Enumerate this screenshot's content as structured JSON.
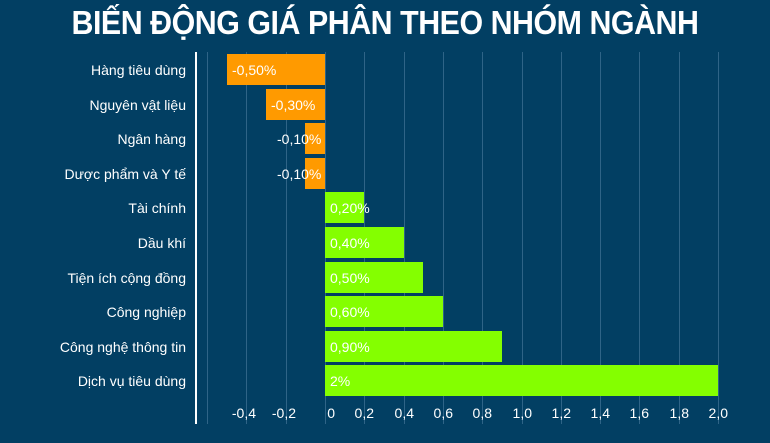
{
  "title": "BIẾN ĐỘNG GIÁ PHÂN THEO NHÓM NGÀNH",
  "chart_data": {
    "type": "bar",
    "orientation": "horizontal",
    "title": "BIẾN ĐỘNG GIÁ PHÂN THEO NHÓM NGÀNH",
    "xlabel": "",
    "ylabel": "",
    "xlim": [
      -0.5,
      2.0
    ],
    "grid": true,
    "legend": null,
    "categories": [
      "Hàng tiêu dùng",
      "Nguyên vật liệu",
      "Ngân hàng",
      "Dược phẩm và Y tế",
      "Tài chính",
      "Dầu khí",
      "Tiện ích cộng đồng",
      "Công nghiệp",
      "Công nghệ thông tin",
      "Dịch vụ tiêu dùng"
    ],
    "values": [
      -0.5,
      -0.3,
      -0.1,
      -0.1,
      0.2,
      0.4,
      0.5,
      0.6,
      0.9,
      2.0
    ],
    "value_labels": [
      "-0,50%",
      "-0,30%",
      "-0,10%",
      "-0,10%",
      "0,20%",
      "0,40%",
      "0,50%",
      "0,60%",
      "0,90%",
      "2%"
    ],
    "x_ticks": [
      "-0,4",
      "-0,2",
      "0",
      "0,2",
      "0,4",
      "0,6",
      "0,8",
      "1,0",
      "1,2",
      "1,4",
      "1,6",
      "1,8",
      "2,0"
    ],
    "x_tick_values": [
      -0.4,
      -0.2,
      0,
      0.2,
      0.4,
      0.6,
      0.8,
      1.0,
      1.2,
      1.4,
      1.6,
      1.8,
      2.0
    ],
    "colors": {
      "negative": "#ff9a00",
      "positive": "#84ff00",
      "background": "#023f63",
      "text": "#ffffff",
      "grid": "#2f6487"
    }
  }
}
